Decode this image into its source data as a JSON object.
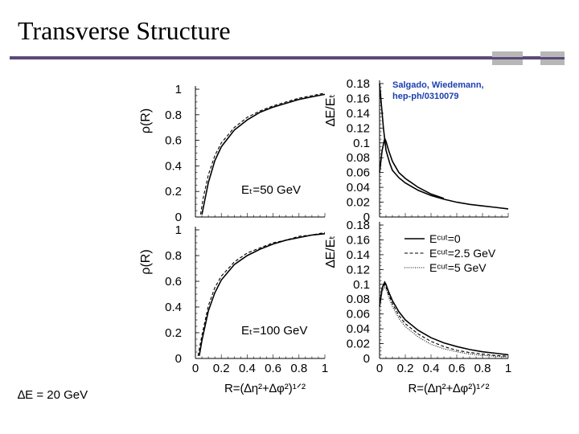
{
  "slide": {
    "title": "Transverse Structure",
    "citation_line1": "Salgado, Wiedemann,",
    "citation_line2": "hep-ph/0310079",
    "energy_note": "∆E = 20 GeV",
    "accent_color": "#5a4a78"
  },
  "chart_data": [
    {
      "type": "line",
      "panel": "top-left",
      "ylabel": "ρ(R)",
      "annotation": "Eₜ=50 GeV",
      "xlim": [
        0,
        1
      ],
      "ylim": [
        0,
        1
      ],
      "yticks": [
        "0",
        "0.2",
        "0.4",
        "0.6",
        "0.8",
        "1"
      ],
      "series": [
        {
          "style": "solid",
          "x": [
            0.05,
            0.07,
            0.1,
            0.15,
            0.2,
            0.3,
            0.4,
            0.5,
            0.6,
            0.7,
            0.8,
            0.9,
            1.0
          ],
          "y": [
            0.02,
            0.12,
            0.27,
            0.44,
            0.55,
            0.68,
            0.76,
            0.82,
            0.86,
            0.89,
            0.92,
            0.94,
            0.96
          ]
        },
        {
          "style": "dashed",
          "x": [
            0.04,
            0.06,
            0.1,
            0.15,
            0.2,
            0.3,
            0.4,
            0.5,
            0.6,
            0.7,
            0.8,
            0.9,
            1.0
          ],
          "y": [
            0.02,
            0.15,
            0.33,
            0.48,
            0.58,
            0.7,
            0.78,
            0.83,
            0.87,
            0.9,
            0.93,
            0.95,
            0.97
          ]
        }
      ]
    },
    {
      "type": "line",
      "panel": "bottom-left",
      "ylabel": "ρ(R)",
      "annotation": "Eₜ=100 GeV",
      "xlabel": "R=(∆η²+∆φ²)¹ᐟ²",
      "xlim": [
        0,
        1
      ],
      "ylim": [
        0,
        1
      ],
      "xticks": [
        "0",
        "0.2",
        "0.4",
        "0.6",
        "0.8",
        "1"
      ],
      "yticks": [
        "0",
        "0.2",
        "0.4",
        "0.6",
        "0.8",
        "1"
      ],
      "series": [
        {
          "style": "solid",
          "x": [
            0.03,
            0.05,
            0.1,
            0.15,
            0.2,
            0.3,
            0.4,
            0.5,
            0.6,
            0.7,
            0.8,
            0.9,
            1.0
          ],
          "y": [
            0.02,
            0.14,
            0.37,
            0.51,
            0.61,
            0.73,
            0.8,
            0.85,
            0.89,
            0.92,
            0.94,
            0.96,
            0.97
          ]
        },
        {
          "style": "dashed",
          "x": [
            0.02,
            0.05,
            0.1,
            0.15,
            0.2,
            0.3,
            0.4,
            0.5,
            0.6,
            0.7,
            0.8,
            0.9,
            1.0
          ],
          "y": [
            0.02,
            0.18,
            0.41,
            0.55,
            0.64,
            0.75,
            0.82,
            0.86,
            0.9,
            0.92,
            0.95,
            0.96,
            0.98
          ]
        }
      ]
    },
    {
      "type": "line",
      "panel": "top-right",
      "ylabel": "∆E/Eₜ",
      "xlim": [
        0,
        1
      ],
      "ylim": [
        0,
        0.18
      ],
      "yticks": [
        "0",
        "0.02",
        "0.04",
        "0.06",
        "0.08",
        "0.1",
        "0.12",
        "0.14",
        "0.16",
        "0.18"
      ],
      "series": [
        {
          "style": "solid",
          "x": [
            0.0,
            0.01,
            0.02,
            0.03,
            0.05,
            0.08,
            0.1,
            0.15,
            0.2,
            0.3,
            0.4,
            0.5,
            0.6,
            0.7,
            0.8,
            0.9,
            1.0
          ],
          "y": [
            0.18,
            0.16,
            0.14,
            0.12,
            0.09,
            0.072,
            0.063,
            0.053,
            0.046,
            0.036,
            0.029,
            0.024,
            0.02,
            0.017,
            0.015,
            0.013,
            0.011
          ]
        },
        {
          "style": "solid",
          "x": [
            0.0,
            0.02,
            0.04,
            0.05,
            0.07,
            0.1,
            0.15,
            0.2,
            0.3,
            0.4,
            0.5
          ],
          "y": [
            0.06,
            0.09,
            0.106,
            0.102,
            0.09,
            0.075,
            0.06,
            0.052,
            0.04,
            0.031,
            0.025
          ]
        }
      ]
    },
    {
      "type": "line",
      "panel": "bottom-right",
      "ylabel": "∆E/Eₜ",
      "xlabel": "R=(∆η²+∆φ²)¹ᐟ²",
      "xlim": [
        0,
        1
      ],
      "ylim": [
        0,
        0.18
      ],
      "xticks": [
        "0",
        "0.2",
        "0.4",
        "0.6",
        "0.8",
        "1"
      ],
      "yticks": [
        "0",
        "0.02",
        "0.04",
        "0.06",
        "0.08",
        "0.1",
        "0.12",
        "0.14",
        "0.16",
        "0.18"
      ],
      "legend": [
        "Eᶜᵘᵗ=0",
        "Eᶜᵘᵗ=2.5 GeV",
        "Eᶜᵘᵗ=5 GeV"
      ],
      "legend_position": "top-right",
      "series": [
        {
          "name": "Eᶜᵘᵗ=0",
          "style": "solid",
          "x": [
            0.0,
            0.02,
            0.04,
            0.05,
            0.07,
            0.1,
            0.15,
            0.2,
            0.3,
            0.4,
            0.5,
            0.6,
            0.7,
            0.8,
            0.9,
            1.0
          ],
          "y": [
            0.07,
            0.095,
            0.103,
            0.1,
            0.09,
            0.078,
            0.063,
            0.052,
            0.038,
            0.028,
            0.021,
            0.016,
            0.012,
            0.009,
            0.007,
            0.005
          ]
        },
        {
          "name": "Eᶜᵘᵗ=2.5 GeV",
          "style": "dashed",
          "x": [
            0.0,
            0.02,
            0.04,
            0.05,
            0.07,
            0.1,
            0.15,
            0.2,
            0.3,
            0.4,
            0.5,
            0.6,
            0.7,
            0.8,
            0.9,
            1.0
          ],
          "y": [
            0.07,
            0.093,
            0.1,
            0.097,
            0.087,
            0.074,
            0.058,
            0.047,
            0.033,
            0.023,
            0.016,
            0.011,
            0.008,
            0.006,
            0.004,
            0.003
          ]
        },
        {
          "name": "Eᶜᵘᵗ=5 GeV",
          "style": "dotted",
          "x": [
            0.0,
            0.02,
            0.04,
            0.05,
            0.07,
            0.1,
            0.15,
            0.2,
            0.3,
            0.4,
            0.5,
            0.6,
            0.7,
            0.8,
            0.9,
            1.0
          ],
          "y": [
            0.07,
            0.09,
            0.097,
            0.094,
            0.083,
            0.07,
            0.054,
            0.043,
            0.029,
            0.019,
            0.013,
            0.009,
            0.006,
            0.004,
            0.003,
            0.002
          ]
        }
      ]
    }
  ]
}
